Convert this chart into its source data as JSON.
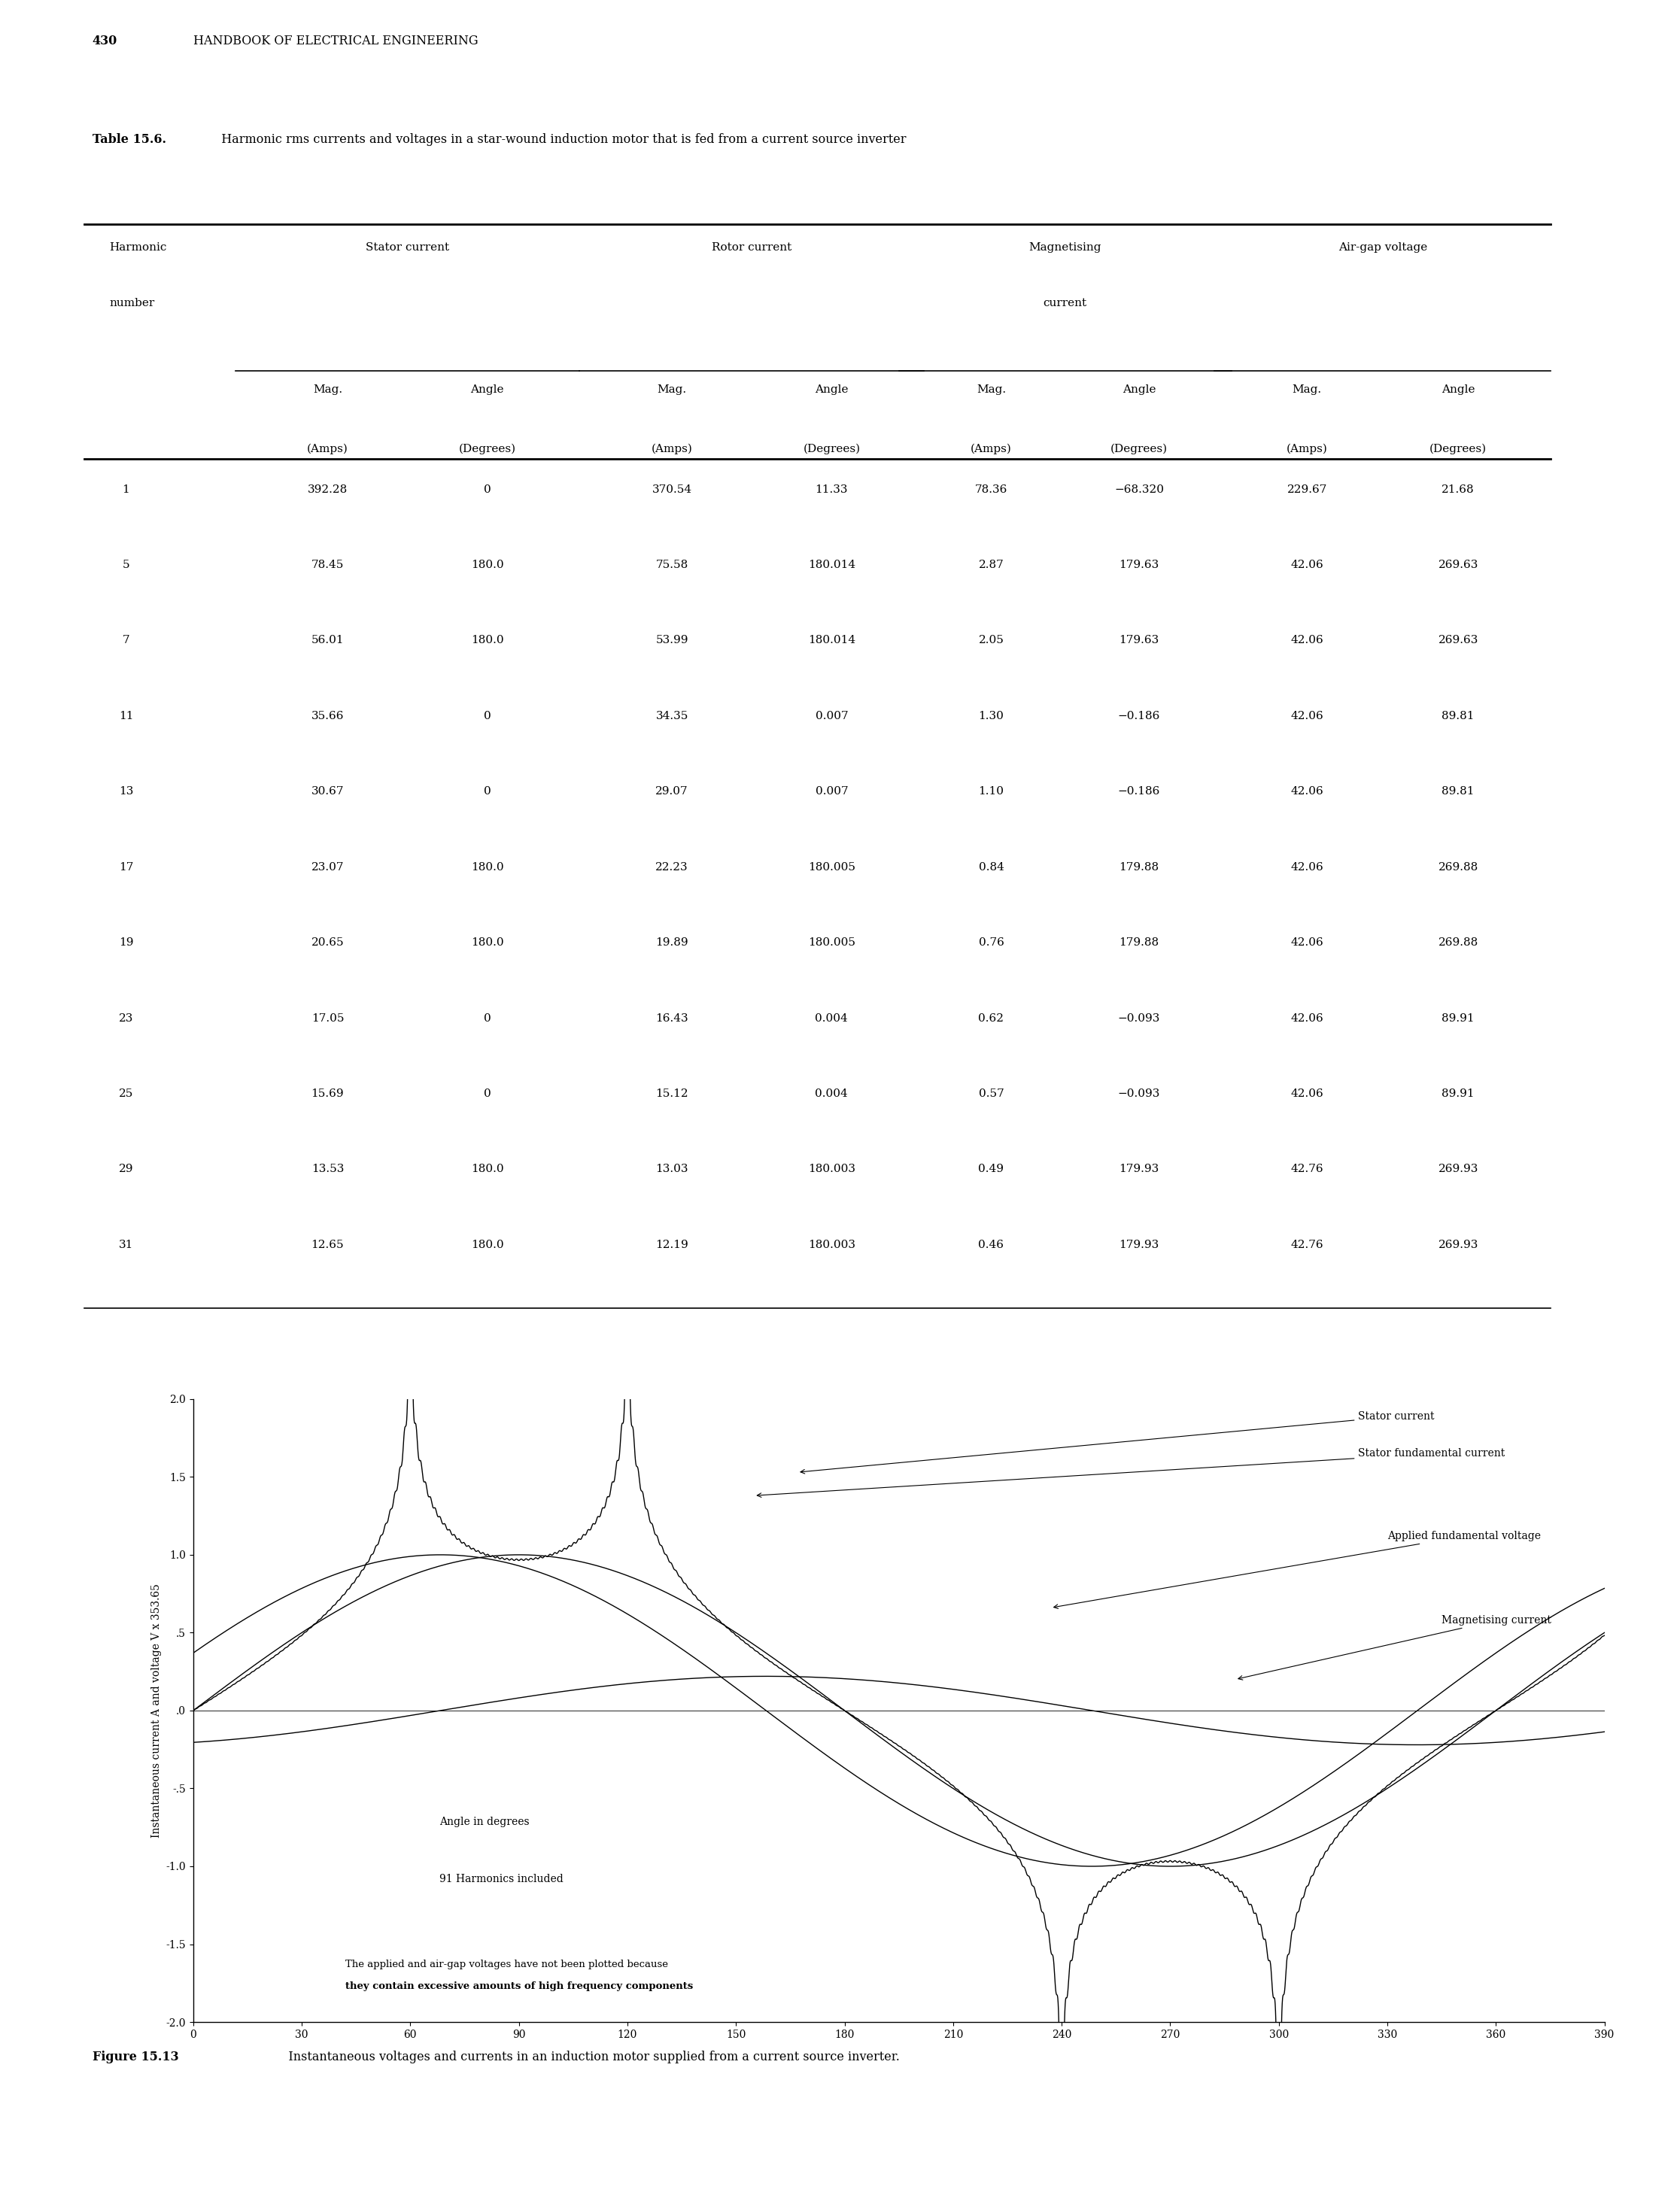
{
  "page_header_num": "430",
  "page_header_text": "HANDBOOK OF ELECTRICAL ENGINEERING",
  "table_title_bold": "Table 15.6.",
  "table_title_rest": "  Harmonic rms currents and voltages in a star-wound induction motor that is fed from a current source inverter",
  "table_data": [
    [
      1,
      392.28,
      0,
      370.54,
      11.33,
      78.36,
      -68.32,
      229.67,
      21.68
    ],
    [
      5,
      78.45,
      180.0,
      75.58,
      180.014,
      2.87,
      179.63,
      42.06,
      269.63
    ],
    [
      7,
      56.01,
      180.0,
      53.99,
      180.014,
      2.05,
      179.63,
      42.06,
      269.63
    ],
    [
      11,
      35.66,
      0,
      34.35,
      0.007,
      1.3,
      -0.186,
      42.06,
      89.81
    ],
    [
      13,
      30.67,
      0,
      29.07,
      0.007,
      1.1,
      -0.186,
      42.06,
      89.81
    ],
    [
      17,
      23.07,
      180.0,
      22.23,
      180.005,
      0.84,
      179.88,
      42.06,
      269.88
    ],
    [
      19,
      20.65,
      180.0,
      19.89,
      180.005,
      0.76,
      179.88,
      42.06,
      269.88
    ],
    [
      23,
      17.05,
      0,
      16.43,
      0.004,
      0.62,
      -0.093,
      42.06,
      89.91
    ],
    [
      25,
      15.69,
      0,
      15.12,
      0.004,
      0.57,
      -0.093,
      42.06,
      89.91
    ],
    [
      29,
      13.53,
      180.0,
      13.03,
      180.003,
      0.49,
      179.93,
      42.76,
      269.93
    ],
    [
      31,
      12.65,
      180.0,
      12.19,
      180.003,
      0.46,
      179.93,
      42.76,
      269.93
    ]
  ],
  "fig_caption_bold": "Figure 15.13",
  "fig_caption_rest": "   Instantaneous voltages and currents in an induction motor supplied from a current source inverter.",
  "plot_ylabel": "Instantaneous current A and voltage V x 353.65",
  "plot_ylim": [
    -2.0,
    2.0
  ],
  "plot_xlim": [
    0,
    390
  ],
  "plot_yticks": [
    -2.0,
    -1.5,
    -1.0,
    -0.5,
    0.0,
    0.5,
    1.0,
    1.5,
    2.0
  ],
  "plot_ytick_labels": [
    "-2.0",
    "-1.5",
    "-1.0",
    "-.5",
    ".0",
    ".5",
    "1.0",
    "1.5",
    "2.0"
  ],
  "plot_xticks": [
    0,
    30,
    60,
    90,
    120,
    150,
    180,
    210,
    240,
    270,
    300,
    330,
    360,
    390
  ],
  "note_text1": "The applied and air-gap voltages have not been plotted because",
  "note_text2": "they contain excessive amounts of high frequency components",
  "harmonics_text": "91 Harmonics included",
  "angle_text": "Angle in degrees",
  "background_color": "#ffffff"
}
